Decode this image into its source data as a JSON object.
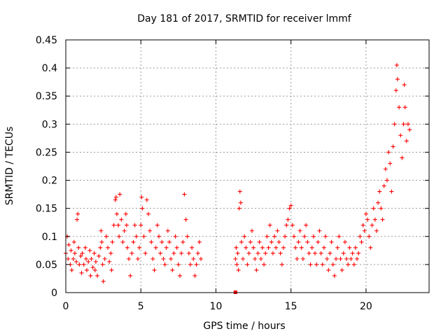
{
  "chart_data": {
    "type": "scatter",
    "title": "Day 181 of 2017, SRMTID for receiver lmmf",
    "xlabel": "GPS time / hours",
    "ylabel": "SRMTID / TECUs",
    "xlim": [
      0,
      24.2
    ],
    "ylim": [
      0,
      0.45
    ],
    "xticks": [
      0,
      5,
      10,
      15,
      20
    ],
    "xtick_labels": [
      "0",
      "5",
      "10",
      "15",
      "20"
    ],
    "yticks": [
      0,
      0.05,
      0.1,
      0.15,
      0.2,
      0.25,
      0.3,
      0.35,
      0.4,
      0.45
    ],
    "ytick_labels": [
      "0",
      "0.05",
      "0.1",
      "0.15",
      "0.2",
      "0.25",
      "0.3",
      "0.35",
      "0.4",
      "0.45"
    ],
    "grid": true,
    "marker": "+",
    "series_color": "#ff0000",
    "series": [
      {
        "name": "SRMTID",
        "points": [
          [
            0.0,
            0.07
          ],
          [
            0.1,
            0.1
          ],
          [
            0.15,
            0.06
          ],
          [
            0.2,
            0.085
          ],
          [
            0.3,
            0.05
          ],
          [
            0.35,
            0.075
          ],
          [
            0.4,
            0.04
          ],
          [
            0.5,
            0.06
          ],
          [
            0.55,
            0.09
          ],
          [
            0.6,
            0.07
          ],
          [
            0.7,
            0.055
          ],
          [
            0.75,
            0.13
          ],
          [
            0.8,
            0.14
          ],
          [
            0.85,
            0.08
          ],
          [
            0.9,
            0.05
          ],
          [
            1.0,
            0.065
          ],
          [
            1.05,
            0.035
          ],
          [
            1.1,
            0.07
          ],
          [
            1.2,
            0.05
          ],
          [
            1.3,
            0.08
          ],
          [
            1.35,
            0.06
          ],
          [
            1.4,
            0.04
          ],
          [
            1.5,
            0.055
          ],
          [
            1.6,
            0.075
          ],
          [
            1.65,
            0.03
          ],
          [
            1.7,
            0.06
          ],
          [
            1.8,
            0.045
          ],
          [
            1.9,
            0.07
          ],
          [
            1.95,
            0.04
          ],
          [
            2.0,
            0.055
          ],
          [
            2.1,
            0.03
          ],
          [
            2.2,
            0.065
          ],
          [
            2.3,
            0.08
          ],
          [
            2.35,
            0.11
          ],
          [
            2.4,
            0.09
          ],
          [
            2.45,
            0.05
          ],
          [
            2.5,
            0.02
          ],
          [
            2.6,
            0.06
          ],
          [
            2.7,
            0.1
          ],
          [
            2.8,
            0.08
          ],
          [
            2.9,
            0.055
          ],
          [
            3.0,
            0.07
          ],
          [
            3.05,
            0.04
          ],
          [
            3.1,
            0.09
          ],
          [
            3.2,
            0.12
          ],
          [
            3.3,
            0.165
          ],
          [
            3.35,
            0.17
          ],
          [
            3.4,
            0.14
          ],
          [
            3.5,
            0.12
          ],
          [
            3.55,
            0.1
          ],
          [
            3.6,
            0.175
          ],
          [
            3.7,
            0.13
          ],
          [
            3.8,
            0.09
          ],
          [
            3.9,
            0.11
          ],
          [
            4.0,
            0.14
          ],
          [
            4.05,
            0.12
          ],
          [
            4.1,
            0.08
          ],
          [
            4.2,
            0.06
          ],
          [
            4.3,
            0.03
          ],
          [
            4.4,
            0.07
          ],
          [
            4.5,
            0.09
          ],
          [
            4.6,
            0.12
          ],
          [
            4.7,
            0.1
          ],
          [
            4.8,
            0.06
          ],
          [
            4.9,
            0.08
          ],
          [
            5.0,
            0.12
          ],
          [
            5.05,
            0.17
          ],
          [
            5.1,
            0.15
          ],
          [
            5.2,
            0.1
          ],
          [
            5.3,
            0.07
          ],
          [
            5.4,
            0.165
          ],
          [
            5.5,
            0.14
          ],
          [
            5.6,
            0.11
          ],
          [
            5.7,
            0.09
          ],
          [
            5.8,
            0.06
          ],
          [
            5.9,
            0.04
          ],
          [
            6.0,
            0.08
          ],
          [
            6.1,
            0.12
          ],
          [
            6.2,
            0.1
          ],
          [
            6.3,
            0.07
          ],
          [
            6.4,
            0.09
          ],
          [
            6.5,
            0.06
          ],
          [
            6.6,
            0.05
          ],
          [
            6.7,
            0.08
          ],
          [
            6.8,
            0.11
          ],
          [
            6.9,
            0.09
          ],
          [
            7.0,
            0.06
          ],
          [
            7.1,
            0.04
          ],
          [
            7.2,
            0.07
          ],
          [
            7.3,
            0.1
          ],
          [
            7.4,
            0.08
          ],
          [
            7.5,
            0.05
          ],
          [
            7.6,
            0.03
          ],
          [
            7.7,
            0.07
          ],
          [
            7.8,
            0.09
          ],
          [
            7.9,
            0.175
          ],
          [
            8.0,
            0.13
          ],
          [
            8.1,
            0.1
          ],
          [
            8.2,
            0.07
          ],
          [
            8.3,
            0.05
          ],
          [
            8.4,
            0.08
          ],
          [
            8.5,
            0.06
          ],
          [
            8.6,
            0.03
          ],
          [
            8.7,
            0.05
          ],
          [
            8.8,
            0.07
          ],
          [
            8.9,
            0.09
          ],
          [
            9.0,
            0.06
          ],
          [
            11.3,
            0.06
          ],
          [
            11.35,
            0.08
          ],
          [
            11.4,
            0.05
          ],
          [
            11.45,
            0.07
          ],
          [
            11.5,
            0.04
          ],
          [
            11.55,
            0.15
          ],
          [
            11.6,
            0.18
          ],
          [
            11.65,
            0.16
          ],
          [
            11.7,
            0.09
          ],
          [
            11.8,
            0.06
          ],
          [
            11.9,
            0.1
          ],
          [
            12.0,
            0.08
          ],
          [
            12.1,
            0.05
          ],
          [
            12.2,
            0.07
          ],
          [
            12.3,
            0.09
          ],
          [
            12.4,
            0.11
          ],
          [
            12.5,
            0.08
          ],
          [
            12.6,
            0.06
          ],
          [
            12.7,
            0.04
          ],
          [
            12.8,
            0.07
          ],
          [
            12.9,
            0.09
          ],
          [
            13.0,
            0.06
          ],
          [
            13.1,
            0.08
          ],
          [
            13.2,
            0.05
          ],
          [
            13.3,
            0.07
          ],
          [
            13.4,
            0.1
          ],
          [
            13.5,
            0.08
          ],
          [
            13.6,
            0.12
          ],
          [
            13.7,
            0.09
          ],
          [
            13.8,
            0.07
          ],
          [
            13.9,
            0.1
          ],
          [
            14.0,
            0.08
          ],
          [
            14.1,
            0.11
          ],
          [
            14.2,
            0.09
          ],
          [
            14.3,
            0.07
          ],
          [
            14.4,
            0.05
          ],
          [
            14.5,
            0.08
          ],
          [
            14.6,
            0.1
          ],
          [
            14.7,
            0.12
          ],
          [
            14.8,
            0.13
          ],
          [
            14.9,
            0.15
          ],
          [
            15.0,
            0.155
          ],
          [
            15.1,
            0.12
          ],
          [
            15.2,
            0.1
          ],
          [
            15.3,
            0.08
          ],
          [
            15.4,
            0.06
          ],
          [
            15.5,
            0.09
          ],
          [
            15.6,
            0.11
          ],
          [
            15.7,
            0.08
          ],
          [
            15.8,
            0.06
          ],
          [
            15.9,
            0.1
          ],
          [
            16.0,
            0.12
          ],
          [
            16.1,
            0.09
          ],
          [
            16.2,
            0.07
          ],
          [
            16.3,
            0.05
          ],
          [
            16.4,
            0.08
          ],
          [
            16.5,
            0.1
          ],
          [
            16.6,
            0.07
          ],
          [
            16.7,
            0.05
          ],
          [
            16.8,
            0.09
          ],
          [
            16.9,
            0.11
          ],
          [
            17.0,
            0.07
          ],
          [
            17.1,
            0.05
          ],
          [
            17.2,
            0.08
          ],
          [
            17.3,
            0.1
          ],
          [
            17.4,
            0.06
          ],
          [
            17.5,
            0.04
          ],
          [
            17.6,
            0.07
          ],
          [
            17.7,
            0.09
          ],
          [
            17.8,
            0.05
          ],
          [
            17.9,
            0.03
          ],
          [
            18.0,
            0.06
          ],
          [
            18.1,
            0.08
          ],
          [
            18.2,
            0.1
          ],
          [
            18.3,
            0.06
          ],
          [
            18.4,
            0.04
          ],
          [
            18.5,
            0.07
          ],
          [
            18.6,
            0.09
          ],
          [
            18.7,
            0.06
          ],
          [
            18.8,
            0.05
          ],
          [
            18.9,
            0.08
          ],
          [
            19.0,
            0.06
          ],
          [
            19.1,
            0.07
          ],
          [
            19.2,
            0.05
          ],
          [
            19.3,
            0.08
          ],
          [
            19.4,
            0.06
          ],
          [
            19.5,
            0.07
          ],
          [
            19.6,
            0.1
          ],
          [
            19.7,
            0.09
          ],
          [
            19.8,
            0.12
          ],
          [
            19.9,
            0.11
          ],
          [
            20.0,
            0.14
          ],
          [
            20.1,
            0.13
          ],
          [
            20.2,
            0.1
          ],
          [
            20.3,
            0.08
          ],
          [
            20.4,
            0.12
          ],
          [
            20.5,
            0.15
          ],
          [
            20.6,
            0.13
          ],
          [
            20.7,
            0.11
          ],
          [
            20.8,
            0.16
          ],
          [
            20.9,
            0.18
          ],
          [
            21.0,
            0.15
          ],
          [
            21.1,
            0.13
          ],
          [
            21.2,
            0.19
          ],
          [
            21.3,
            0.22
          ],
          [
            21.4,
            0.2
          ],
          [
            21.5,
            0.25
          ],
          [
            21.6,
            0.23
          ],
          [
            21.7,
            0.18
          ],
          [
            21.8,
            0.26
          ],
          [
            21.9,
            0.3
          ],
          [
            22.0,
            0.36
          ],
          [
            22.05,
            0.405
          ],
          [
            22.1,
            0.38
          ],
          [
            22.2,
            0.33
          ],
          [
            22.3,
            0.28
          ],
          [
            22.4,
            0.24
          ],
          [
            22.5,
            0.3
          ],
          [
            22.55,
            0.37
          ],
          [
            22.6,
            0.33
          ],
          [
            22.7,
            0.27
          ],
          [
            22.8,
            0.3
          ],
          [
            22.9,
            0.29
          ]
        ]
      }
    ],
    "outlier": [
      11.3,
      0.0
    ]
  }
}
